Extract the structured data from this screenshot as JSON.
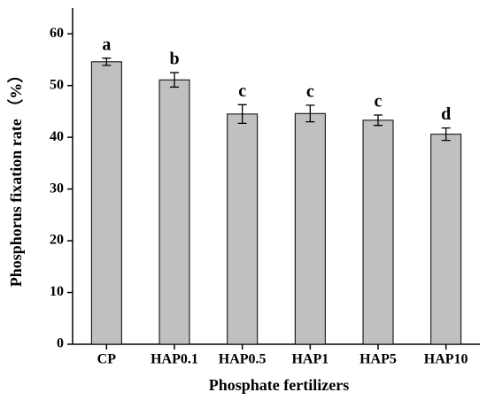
{
  "chart_data": {
    "type": "bar",
    "categories": [
      "CP",
      "HAP0.1",
      "HAP0.5",
      "HAP1",
      "HAP5",
      "HAP10"
    ],
    "values": [
      54.6,
      51.1,
      44.5,
      44.6,
      43.3,
      40.6
    ],
    "errors": [
      0.7,
      1.4,
      1.8,
      1.6,
      1.0,
      1.2
    ],
    "significance_letters": [
      "a",
      "b",
      "c",
      "c",
      "c",
      "d"
    ],
    "color": "#c0c0c0",
    "x_label": "Phosphate fertilizers",
    "y_label": "Phosphorus fixation rate （%）",
    "ylim": [
      0,
      65
    ],
    "yticks": [
      0,
      10,
      20,
      30,
      40,
      50,
      60
    ]
  }
}
